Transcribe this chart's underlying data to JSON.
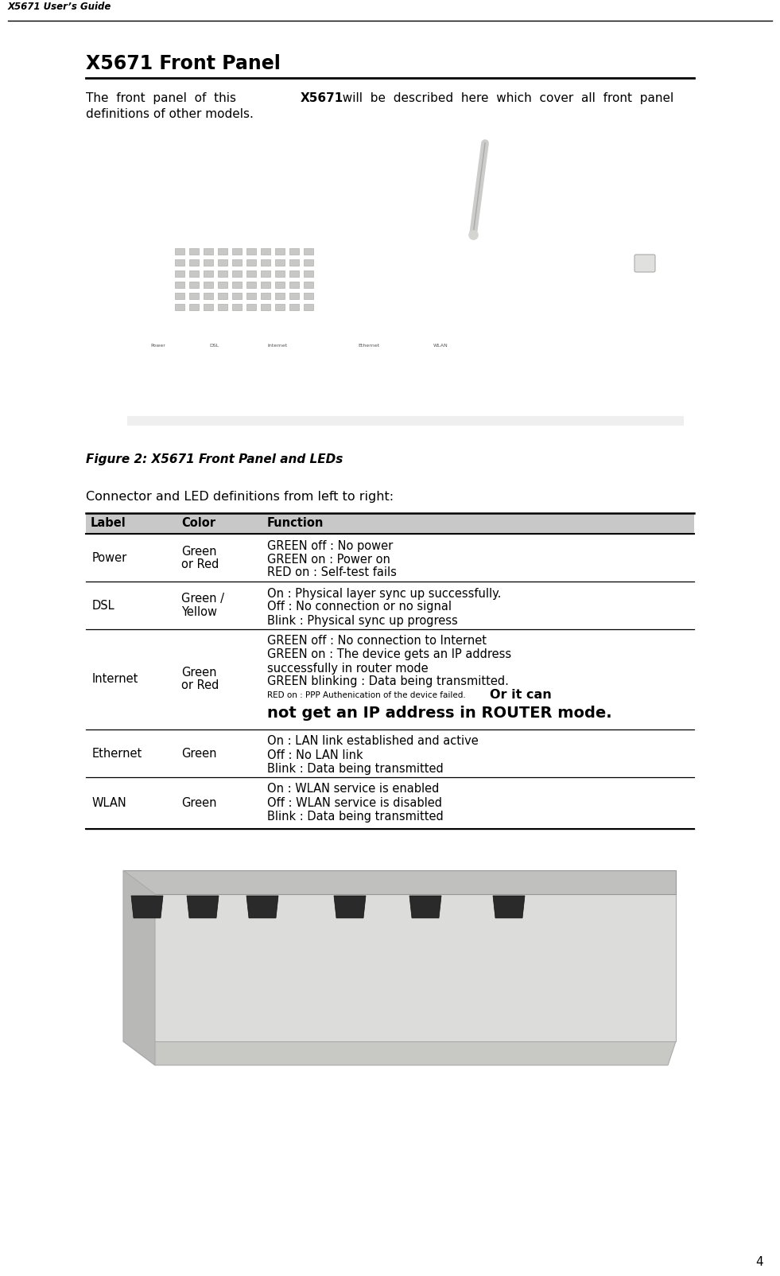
{
  "page_title": "X5671 User’s Guide",
  "section_title": "X5671 Front Panel",
  "intro_line1": "The  front  panel  of  this  ",
  "intro_bold": "X5671",
  "intro_line1b": "  will  be  described  here  which  cover  all  front  panel",
  "intro_line2": "definitions of other models.",
  "figure_caption": "Figure 2: X5671 Front Panel and LEDs",
  "connector_label": "Connector and LED definitions from left to right:",
  "table_headers": [
    "Label",
    "Color",
    "Function"
  ],
  "page_number": "4",
  "bg_color": "#ffffff",
  "text_color": "#000000",
  "header_bg": "#c8c8c8",
  "line_color": "#000000",
  "router_body_color": "#d4d4d0",
  "router_top_color": "#c8c8c4",
  "router_side_color": "#b8b8b4",
  "router_front_color": "#dcdcda",
  "antenna_color": "#ccccca",
  "port_color": "#2a2a2a"
}
